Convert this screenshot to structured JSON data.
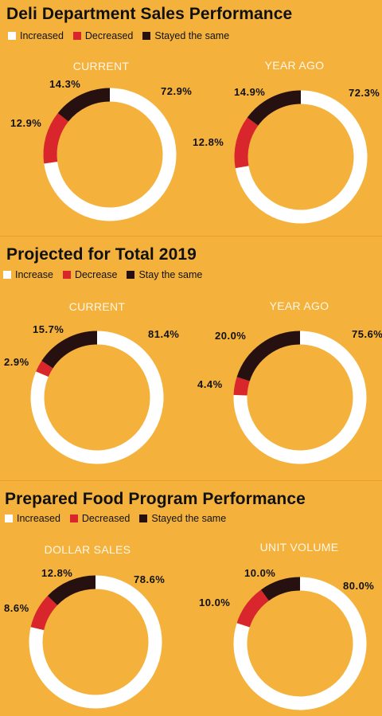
{
  "colors": {
    "background": "#f4b23c",
    "increased": "#ffffff",
    "decreased": "#d9262c",
    "same": "#261010"
  },
  "sections": [
    {
      "title": "Deli Department Sales Performance",
      "legend": [
        "Increased",
        "Decreased",
        "Stayed the same"
      ]
    },
    {
      "title": "Projected for Total 2019",
      "legend": [
        "Increase",
        "Decrease",
        "Stay the same"
      ]
    },
    {
      "title": "Prepared Food Program Performance",
      "legend": [
        "Increased",
        "Decreased",
        "Stayed the same"
      ]
    }
  ],
  "chart_data": [
    {
      "type": "pie",
      "section": 0,
      "title": "CURRENT",
      "categories": [
        "Increased",
        "Decreased",
        "Stayed the same"
      ],
      "values": [
        72.9,
        12.9,
        14.3
      ],
      "labels": [
        "72.9%",
        "12.9%",
        "14.3%"
      ]
    },
    {
      "type": "pie",
      "section": 0,
      "title": "YEAR AGO",
      "categories": [
        "Increased",
        "Decreased",
        "Stayed the same"
      ],
      "values": [
        72.3,
        12.8,
        14.9
      ],
      "labels": [
        "72.3%",
        "12.8%",
        "14.9%"
      ]
    },
    {
      "type": "pie",
      "section": 1,
      "title": "CURRENT",
      "categories": [
        "Increase",
        "Decrease",
        "Stay the same"
      ],
      "values": [
        81.4,
        2.9,
        15.7
      ],
      "labels": [
        "81.4%",
        "2.9%",
        "15.7%"
      ]
    },
    {
      "type": "pie",
      "section": 1,
      "title": "YEAR AGO",
      "categories": [
        "Increase",
        "Decrease",
        "Stay the same"
      ],
      "values": [
        75.6,
        4.4,
        20.0
      ],
      "labels": [
        "75.6%",
        "4.4%",
        "20.0%"
      ]
    },
    {
      "type": "pie",
      "section": 2,
      "title": "DOLLAR SALES",
      "categories": [
        "Increased",
        "Decreased",
        "Stayed the same"
      ],
      "values": [
        78.6,
        8.6,
        12.8
      ],
      "labels": [
        "78.6%",
        "8.6%",
        "12.8%"
      ]
    },
    {
      "type": "pie",
      "section": 2,
      "title": "UNIT VOLUME",
      "categories": [
        "Increased",
        "Decreased",
        "Stayed the same"
      ],
      "values": [
        80.0,
        10.0,
        10.0
      ],
      "labels": [
        "80.0%",
        "10.0%",
        "10.0%"
      ]
    }
  ]
}
